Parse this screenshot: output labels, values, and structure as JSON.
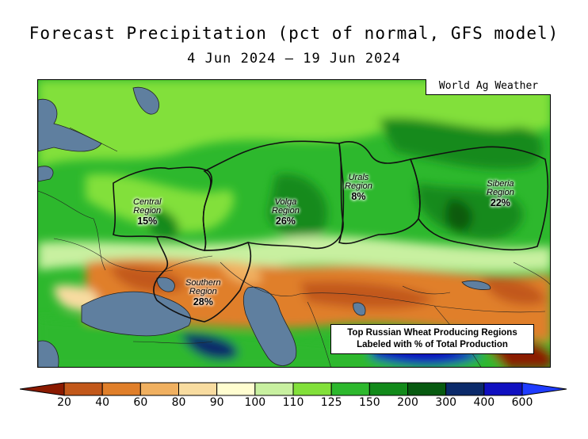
{
  "title": "Forecast Precipitation (pct of normal, GFS model)",
  "date_range": "4 Jun 2024 — 19 Jun 2024",
  "credit": "World Ag Weather",
  "note": {
    "line1": "Top Russian Wheat Producing Regions",
    "line2": "Labeled with % of Total Production"
  },
  "regions": [
    {
      "name_line1": "Central",
      "name_line2": "Region",
      "share": "15%"
    },
    {
      "name_line1": "Volga",
      "name_line2": "Region",
      "share": "26%"
    },
    {
      "name_line1": "Urals",
      "name_line2": "Region",
      "share": "8%"
    },
    {
      "name_line1": "Siberia",
      "name_line2": "Region",
      "share": "22%"
    },
    {
      "name_line1": "Southern",
      "name_line2": "Region",
      "share": "28%"
    }
  ],
  "colorbar": {
    "ticks": [
      "20",
      "40",
      "60",
      "80",
      "90",
      "100",
      "110",
      "125",
      "150",
      "200",
      "300",
      "400",
      "600"
    ],
    "colors": [
      "#8b1a00",
      "#c2581a",
      "#e07f2a",
      "#f0b060",
      "#f8dca0",
      "#fffdd0",
      "#c8f0a0",
      "#82e03a",
      "#2db82d",
      "#128a1a",
      "#075a10",
      "#0b2a6a",
      "#1010c0",
      "#1f3cff"
    ],
    "ocean_color": "#5f7f9f"
  }
}
